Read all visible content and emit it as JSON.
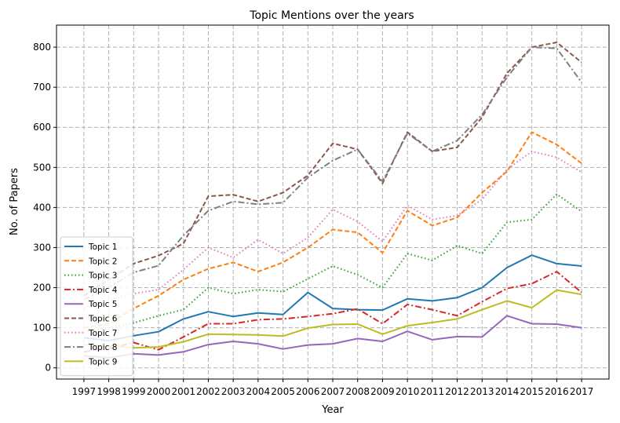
{
  "chart_data": {
    "type": "line",
    "title": "Topic Mentions over the years",
    "xlabel": "Year",
    "ylabel": "No. of Papers",
    "x": [
      "1997",
      "1998",
      "1999",
      "2000",
      "2001",
      "2002",
      "2003",
      "2004",
      "2005",
      "2006",
      "2007",
      "2008",
      "2009",
      "2010",
      "2011",
      "2012",
      "2013",
      "2014",
      "2015",
      "2016",
      "2017"
    ],
    "xlim": [
      1995.9,
      2018.1
    ],
    "ylim": [
      -28,
      855
    ],
    "yticks": [
      0,
      100,
      200,
      300,
      400,
      500,
      600,
      700,
      800
    ],
    "grid": true,
    "legend": "center-left",
    "series": [
      {
        "name": "Topic 1",
        "color": "#1f77b4",
        "style": "solid",
        "values": [
          75,
          68,
          80,
          90,
          122,
          140,
          128,
          137,
          133,
          188,
          148,
          145,
          144,
          172,
          167,
          175,
          200,
          250,
          281,
          260,
          254
        ]
      },
      {
        "name": "Topic 2",
        "color": "#ff7f0e",
        "style": "dashed",
        "values": [
          100,
          110,
          148,
          180,
          220,
          247,
          263,
          240,
          263,
          300,
          345,
          338,
          287,
          392,
          355,
          375,
          437,
          490,
          588,
          557,
          510
        ]
      },
      {
        "name": "Topic 3",
        "color": "#2ca02c",
        "style": "dotted",
        "values": [
          90,
          100,
          112,
          130,
          145,
          200,
          185,
          195,
          190,
          222,
          254,
          232,
          200,
          285,
          268,
          305,
          285,
          363,
          370,
          433,
          390
        ]
      },
      {
        "name": "Topic 4",
        "color": "#d62728",
        "style": "dashdot",
        "values": [
          40,
          48,
          63,
          45,
          77,
          110,
          110,
          120,
          122,
          128,
          135,
          147,
          110,
          158,
          145,
          130,
          165,
          198,
          210,
          240,
          188
        ]
      },
      {
        "name": "Topic 5",
        "color": "#9467bd",
        "style": "solid",
        "values": [
          30,
          25,
          35,
          32,
          40,
          58,
          66,
          60,
          47,
          57,
          60,
          73,
          66,
          91,
          70,
          78,
          77,
          130,
          110,
          109,
          100
        ]
      },
      {
        "name": "Topic 6",
        "color": "#8c564b",
        "style": "dashed",
        "values": [
          180,
          220,
          260,
          280,
          310,
          428,
          432,
          415,
          437,
          480,
          560,
          545,
          460,
          588,
          540,
          550,
          625,
          735,
          800,
          812,
          762
        ]
      },
      {
        "name": "Topic 7",
        "color": "#e377c2",
        "style": "dotted",
        "values": [
          150,
          170,
          185,
          195,
          245,
          300,
          275,
          320,
          285,
          325,
          395,
          365,
          315,
          405,
          370,
          380,
          420,
          495,
          540,
          525,
          488
        ]
      },
      {
        "name": "Topic 8",
        "color": "#7f7f7f",
        "style": "dashdot",
        "values": [
          170,
          200,
          238,
          255,
          330,
          392,
          415,
          408,
          412,
          475,
          517,
          545,
          465,
          585,
          540,
          567,
          632,
          725,
          800,
          797,
          712
        ]
      },
      {
        "name": "Topic 9",
        "color": "#bcbd22",
        "style": "solid",
        "values": [
          58,
          55,
          50,
          52,
          65,
          84,
          83,
          82,
          79,
          99,
          108,
          109,
          84,
          105,
          113,
          122,
          145,
          167,
          150,
          194,
          183
        ]
      }
    ]
  }
}
